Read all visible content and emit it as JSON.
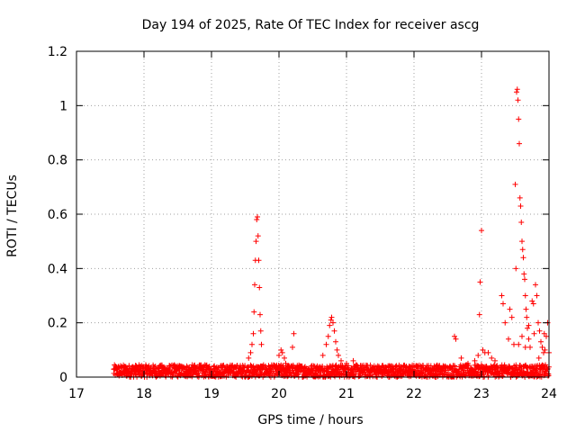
{
  "chart_data": {
    "type": "scatter",
    "title": "Day 194 of 2025, Rate Of TEC Index for receiver ascg",
    "xlabel": "GPS time / hours",
    "ylabel": "ROTI / TECUs",
    "xlim": [
      17,
      24
    ],
    "ylim": [
      0,
      1.2
    ],
    "xticks": [
      17,
      18,
      19,
      20,
      21,
      22,
      23,
      24
    ],
    "yticks": [
      0,
      0.2,
      0.4,
      0.6,
      0.8,
      1,
      1.2
    ],
    "ytick_labels": [
      "0",
      "0.2",
      "0.4",
      "0.6",
      "0.8",
      "1",
      "1.2"
    ],
    "grid": true,
    "legend": "none",
    "marker": "+",
    "color": "#ff0000",
    "baseline": {
      "x_start": 17.55,
      "x_end": 24.0,
      "y_range": [
        0.0,
        0.045
      ],
      "note_hidden": ""
    },
    "points": [
      [
        19.55,
        0.07
      ],
      [
        19.58,
        0.09
      ],
      [
        19.6,
        0.12
      ],
      [
        19.62,
        0.16
      ],
      [
        19.63,
        0.24
      ],
      [
        19.64,
        0.34
      ],
      [
        19.65,
        0.43
      ],
      [
        19.66,
        0.5
      ],
      [
        19.67,
        0.58
      ],
      [
        19.68,
        0.59
      ],
      [
        19.69,
        0.52
      ],
      [
        19.7,
        0.43
      ],
      [
        19.71,
        0.33
      ],
      [
        19.72,
        0.23
      ],
      [
        19.73,
        0.17
      ],
      [
        19.74,
        0.12
      ],
      [
        20.0,
        0.08
      ],
      [
        20.03,
        0.1
      ],
      [
        20.05,
        0.09
      ],
      [
        20.08,
        0.07
      ],
      [
        20.1,
        0.05
      ],
      [
        20.15,
        0.04
      ],
      [
        20.2,
        0.11
      ],
      [
        20.22,
        0.16
      ],
      [
        20.65,
        0.08
      ],
      [
        20.7,
        0.12
      ],
      [
        20.73,
        0.15
      ],
      [
        20.75,
        0.19
      ],
      [
        20.77,
        0.21
      ],
      [
        20.78,
        0.22
      ],
      [
        20.8,
        0.2
      ],
      [
        20.82,
        0.17
      ],
      [
        20.84,
        0.13
      ],
      [
        20.86,
        0.1
      ],
      [
        20.88,
        0.08
      ],
      [
        20.92,
        0.06
      ],
      [
        21.0,
        0.05
      ],
      [
        21.1,
        0.06
      ],
      [
        22.6,
        0.15
      ],
      [
        22.62,
        0.14
      ],
      [
        22.7,
        0.07
      ],
      [
        22.8,
        0.05
      ],
      [
        22.9,
        0.06
      ],
      [
        22.95,
        0.08
      ],
      [
        22.97,
        0.23
      ],
      [
        22.98,
        0.35
      ],
      [
        23.0,
        0.54
      ],
      [
        23.02,
        0.1
      ],
      [
        23.05,
        0.09
      ],
      [
        23.1,
        0.09
      ],
      [
        23.15,
        0.07
      ],
      [
        23.2,
        0.06
      ],
      [
        23.3,
        0.3
      ],
      [
        23.32,
        0.27
      ],
      [
        23.35,
        0.2
      ],
      [
        23.4,
        0.14
      ],
      [
        23.42,
        0.25
      ],
      [
        23.45,
        0.22
      ],
      [
        23.48,
        0.12
      ],
      [
        23.5,
        0.71
      ],
      [
        23.51,
        0.4
      ],
      [
        23.52,
        1.05
      ],
      [
        23.53,
        1.06
      ],
      [
        23.54,
        1.02
      ],
      [
        23.55,
        0.95
      ],
      [
        23.56,
        0.86
      ],
      [
        23.57,
        0.66
      ],
      [
        23.58,
        0.63
      ],
      [
        23.59,
        0.57
      ],
      [
        23.6,
        0.5
      ],
      [
        23.61,
        0.47
      ],
      [
        23.62,
        0.44
      ],
      [
        23.63,
        0.38
      ],
      [
        23.64,
        0.36
      ],
      [
        23.65,
        0.3
      ],
      [
        23.66,
        0.25
      ],
      [
        23.67,
        0.22
      ],
      [
        23.68,
        0.18
      ],
      [
        23.7,
        0.14
      ],
      [
        23.72,
        0.11
      ],
      [
        23.75,
        0.28
      ],
      [
        23.77,
        0.27
      ],
      [
        23.8,
        0.34
      ],
      [
        23.82,
        0.3
      ],
      [
        23.84,
        0.2
      ],
      [
        23.86,
        0.17
      ],
      [
        23.88,
        0.13
      ],
      [
        23.9,
        0.11
      ],
      [
        23.92,
        0.09
      ],
      [
        23.94,
        0.1
      ],
      [
        23.96,
        0.15
      ],
      [
        23.98,
        0.2
      ],
      [
        24.0,
        0.09
      ],
      [
        23.55,
        0.12
      ],
      [
        23.6,
        0.15
      ],
      [
        23.65,
        0.11
      ],
      [
        23.7,
        0.19
      ],
      [
        23.78,
        0.16
      ],
      [
        23.85,
        0.07
      ],
      [
        23.93,
        0.16
      ]
    ]
  }
}
